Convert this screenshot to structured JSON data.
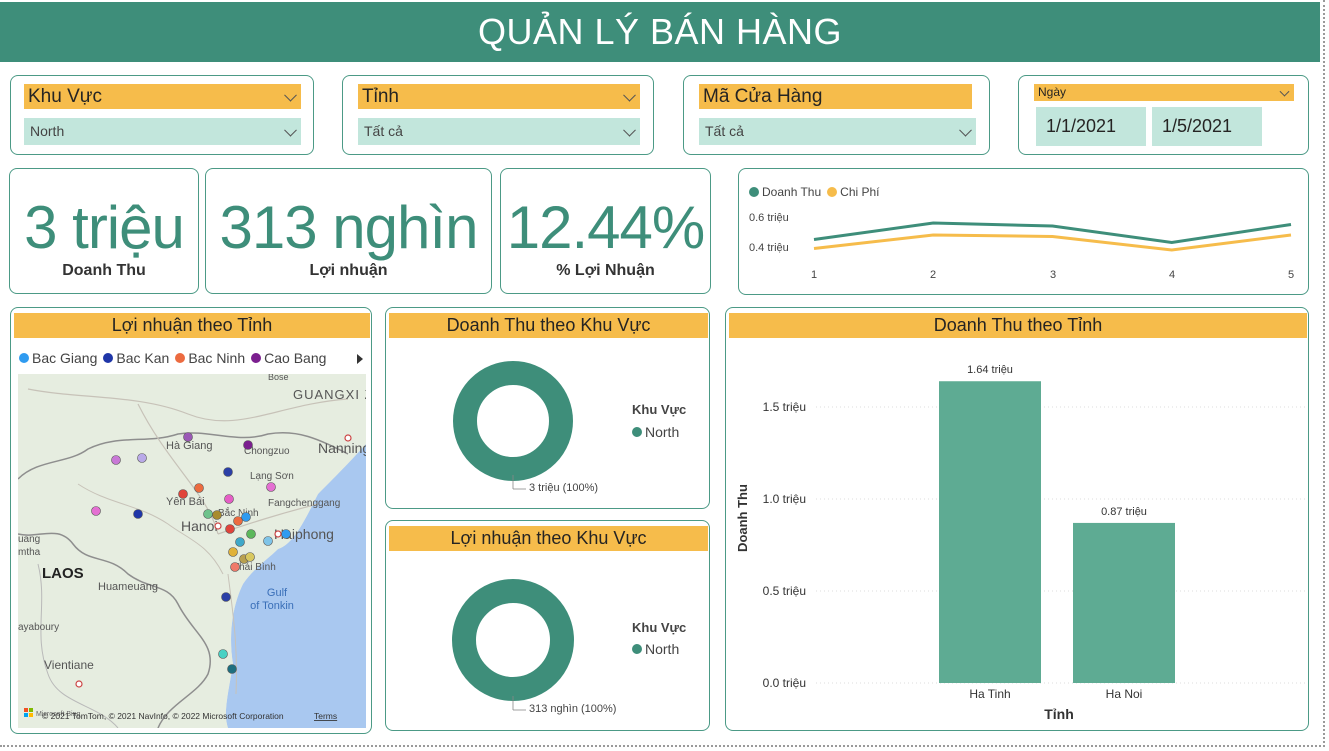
{
  "title": "QUẢN LÝ BÁN HÀNG",
  "filters": {
    "region": {
      "label": "Khu Vực",
      "value": "North"
    },
    "province": {
      "label": "Tỉnh",
      "value": "Tất cả"
    },
    "store": {
      "label": "Mã Cửa Hàng",
      "value": "Tất cả"
    },
    "date": {
      "label": "Ngày",
      "from": "1/1/2021",
      "to": "1/5/2021"
    }
  },
  "kpis": {
    "revenue": {
      "value": "3 triệu",
      "label": "Doanh Thu"
    },
    "profit": {
      "value": "313 nghìn",
      "label": "Lợi nhuận"
    },
    "margin": {
      "value": "12.44%",
      "label": "% Lợi Nhuận"
    }
  },
  "colors": {
    "teal": "#3e8e7a",
    "orange": "#f6bc4b",
    "light_teal": "#c2e6dc",
    "bar": "#5eab93"
  },
  "line_chart": {
    "legend": [
      "Doanh Thu",
      "Chi Phí"
    ],
    "y_ticks": [
      "0.6 triệu",
      "0.4 triệu"
    ],
    "x_ticks": [
      "1",
      "2",
      "3",
      "4",
      "5"
    ]
  },
  "map_panel": {
    "title": "Lợi nhuận theo Tỉnh",
    "legend": [
      {
        "name": "Bac Giang",
        "color": "#2f9bf0"
      },
      {
        "name": "Bac Kan",
        "color": "#1f36a8"
      },
      {
        "name": "Bac Ninh",
        "color": "#ec6b40"
      },
      {
        "name": "Cao Bang",
        "color": "#7b1f8f"
      }
    ],
    "places": {
      "guangxi": "GUANGXI Z",
      "hagiang": "Hà Giang",
      "chongzuo": "Chongzuo",
      "nanning": "Nanning",
      "langson": "Lạng Sơn",
      "yenbai": "Yên Bái",
      "fangcheng": "Fangchenggang",
      "bacninh": "Bắc Ninh",
      "hanoi": "Hanoi",
      "haiphong": "Haiphong",
      "thaibinh": "Thái Bình",
      "laos": "LAOS",
      "huameuang": "Huameuang",
      "gulf": "Gulf\nof Tonkin",
      "yabaury": "ayaboury",
      "vientiane": "Vientiane",
      "mtha": "mtha",
      "uang": "uang",
      "bose": "Bose"
    },
    "attribution": "© 2021 TomTom, © 2021 NavInfo, © 2022 Microsoft Corporation",
    "terms": "Terms",
    "ms_logo_text": "Microsoft Bing"
  },
  "donut_revenue": {
    "title": "Doanh Thu theo Khu Vực",
    "legend_title": "Khu Vực",
    "legend_item": "North",
    "slice_label": "3 triệu (100%)"
  },
  "donut_profit": {
    "title": "Lợi nhuận theo Khu Vực",
    "legend_title": "Khu Vực",
    "legend_item": "North",
    "slice_label": "313 nghìn (100%)"
  },
  "chart_data": [
    {
      "type": "line",
      "x": [
        1,
        2,
        3,
        4,
        5
      ],
      "series": [
        {
          "name": "Doanh Thu",
          "color": "#3e8e7a",
          "values": [
            0.45,
            0.56,
            0.54,
            0.43,
            0.55
          ]
        },
        {
          "name": "Chi Phí",
          "color": "#f6bc4b",
          "values": [
            0.39,
            0.48,
            0.47,
            0.38,
            0.48
          ]
        }
      ],
      "ylim": [
        0.3,
        0.7
      ],
      "y_unit": "triệu",
      "legend_position": "top-left",
      "grid": false
    },
    {
      "type": "bar",
      "title": "Doanh Thu theo Tỉnh",
      "categories": [
        "Ha Tinh",
        "Ha Noi"
      ],
      "values": [
        1.64,
        0.87
      ],
      "data_labels": [
        "1.64 triệu",
        "0.87 triệu"
      ],
      "xlabel": "Tỉnh",
      "ylabel": "Doanh Thu",
      "ylim": [
        0,
        1.8
      ],
      "y_ticks": [
        "1.5 triệu",
        "1.0 triệu",
        "0.5 triệu",
        "0.0 triệu"
      ],
      "y_tick_values": [
        1.5,
        1.0,
        0.5,
        0.0
      ],
      "grid": true
    },
    {
      "type": "pie",
      "title": "Doanh Thu theo Khu Vực",
      "categories": [
        "North"
      ],
      "values": [
        100
      ]
    },
    {
      "type": "pie",
      "title": "Lợi nhuận theo Khu Vực",
      "categories": [
        "North"
      ],
      "values": [
        100
      ]
    }
  ]
}
